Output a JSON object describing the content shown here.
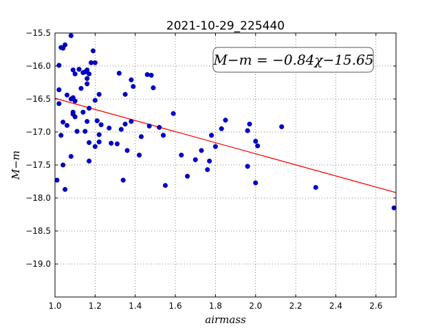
{
  "chart_data": {
    "type": "scatter",
    "title": "2021-10-29_225440",
    "xlabel": "airmass",
    "ylabel": "M−m",
    "xlim": [
      1.0,
      2.7
    ],
    "ylim": [
      -15.5,
      -19.5
    ],
    "y_inverted": true,
    "xticks": [
      1.0,
      1.2,
      1.4,
      1.6,
      1.8,
      2.0,
      2.2,
      2.4,
      2.6
    ],
    "xtick_labels": [
      "1.0",
      "1.2",
      "1.4",
      "1.6",
      "1.8",
      "2.0",
      "2.2",
      "2.4",
      "2.6"
    ],
    "yticks": [
      -15.5,
      -16.0,
      -16.5,
      -17.0,
      -17.5,
      -18.0,
      -18.5,
      -19.0
    ],
    "ytick_labels": [
      "−15.5",
      "−16.0",
      "−16.5",
      "−17.0",
      "−17.5",
      "−18.0",
      "−18.5",
      "−19.0"
    ],
    "grid": true,
    "annotation": "M−m = −0.84χ−15.65",
    "annotation_location": "upper-right",
    "fit": {
      "slope": -0.84,
      "intercept": -15.65,
      "color": "#ff0000",
      "x_range": [
        1.0,
        2.7
      ]
    },
    "point_color": "#0000cc",
    "points": [
      [
        1.01,
        -17.73
      ],
      [
        1.02,
        -16.36
      ],
      [
        1.02,
        -16.57
      ],
      [
        1.02,
        -15.99
      ],
      [
        1.03,
        -17.05
      ],
      [
        1.03,
        -15.72
      ],
      [
        1.04,
        -15.73
      ],
      [
        1.04,
        -16.85
      ],
      [
        1.04,
        -17.5
      ],
      [
        1.05,
        -15.68
      ],
      [
        1.05,
        -17.87
      ],
      [
        1.06,
        -16.44
      ],
      [
        1.06,
        -16.9
      ],
      [
        1.08,
        -15.54
      ],
      [
        1.08,
        -16.5
      ],
      [
        1.08,
        -17.37
      ],
      [
        1.09,
        -16.06
      ],
      [
        1.09,
        -16.48
      ],
      [
        1.09,
        -16.7
      ],
      [
        1.09,
        -16.73
      ],
      [
        1.1,
        -16.53
      ],
      [
        1.1,
        -16.77
      ],
      [
        1.1,
        -16.12
      ],
      [
        1.11,
        -16.99
      ],
      [
        1.12,
        -16.05
      ],
      [
        1.13,
        -16.34
      ],
      [
        1.14,
        -16.1
      ],
      [
        1.14,
        -16.7
      ],
      [
        1.15,
        -16.09
      ],
      [
        1.15,
        -16.99
      ],
      [
        1.16,
        -16.84
      ],
      [
        1.16,
        -16.27
      ],
      [
        1.16,
        -16.19
      ],
      [
        1.16,
        -16.06
      ],
      [
        1.17,
        -16.12
      ],
      [
        1.17,
        -16.64
      ],
      [
        1.17,
        -17.16
      ],
      [
        1.17,
        -17.44
      ],
      [
        1.18,
        -15.95
      ],
      [
        1.19,
        -15.77
      ],
      [
        1.2,
        -15.95
      ],
      [
        1.2,
        -16.52
      ],
      [
        1.2,
        -17.22
      ],
      [
        1.21,
        -16.83
      ],
      [
        1.22,
        -16.43
      ],
      [
        1.22,
        -17.04
      ],
      [
        1.22,
        -17.15
      ],
      [
        1.23,
        -16.89
      ],
      [
        1.27,
        -16.94
      ],
      [
        1.28,
        -17.17
      ],
      [
        1.31,
        -17.18
      ],
      [
        1.32,
        -16.11
      ],
      [
        1.33,
        -16.96
      ],
      [
        1.34,
        -17.73
      ],
      [
        1.35,
        -16.43
      ],
      [
        1.35,
        -16.88
      ],
      [
        1.36,
        -17.28
      ],
      [
        1.38,
        -16.21
      ],
      [
        1.38,
        -16.84
      ],
      [
        1.39,
        -16.31
      ],
      [
        1.42,
        -17.35
      ],
      [
        1.43,
        -17.07
      ],
      [
        1.46,
        -16.13
      ],
      [
        1.47,
        -16.91
      ],
      [
        1.48,
        -16.14
      ],
      [
        1.49,
        -16.33
      ],
      [
        1.52,
        -16.93
      ],
      [
        1.54,
        -17.05
      ],
      [
        1.55,
        -17.81
      ],
      [
        1.59,
        -16.72
      ],
      [
        1.63,
        -17.35
      ],
      [
        1.66,
        -17.67
      ],
      [
        1.7,
        -17.42
      ],
      [
        1.73,
        -17.28
      ],
      [
        1.76,
        -17.57
      ],
      [
        1.77,
        -17.44
      ],
      [
        1.78,
        -17.05
      ],
      [
        1.8,
        -17.22
      ],
      [
        1.83,
        -16.95
      ],
      [
        1.85,
        -16.82
      ],
      [
        1.96,
        -17.52
      ],
      [
        1.96,
        -16.98
      ],
      [
        1.97,
        -16.88
      ],
      [
        2.0,
        -17.77
      ],
      [
        2.0,
        -17.14
      ],
      [
        2.01,
        -17.21
      ],
      [
        2.13,
        -16.92
      ],
      [
        2.3,
        -17.84
      ],
      [
        2.69,
        -18.15
      ]
    ]
  }
}
